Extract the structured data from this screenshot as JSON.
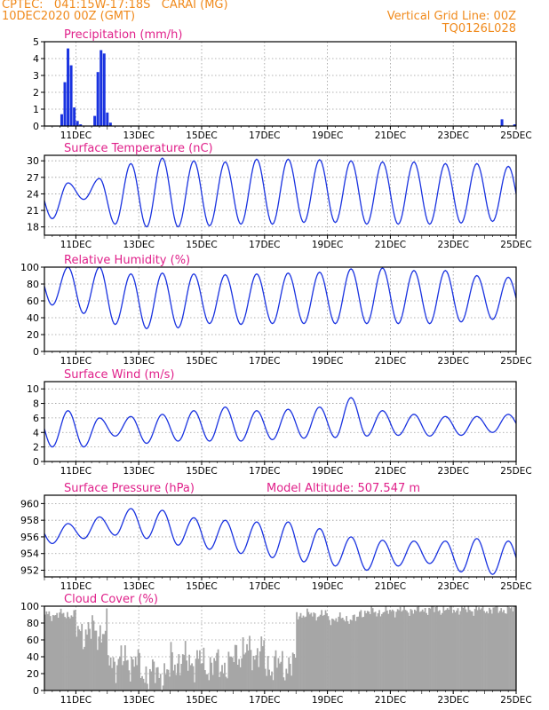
{
  "header": {
    "line1": "CPTEC:   041:15W-17:18S   CARAI (MG)",
    "line2": "10DEC2020 00Z (GMT)",
    "grid_note": "Vertical Grid Line: 00Z",
    "code": "TQ0126L028"
  },
  "colors": {
    "header": "#f08a1c",
    "title": "#e0208a",
    "series": "#1a33e0",
    "cloud": "#a6a6a6",
    "grid": "#9a9a9a"
  },
  "date_ticks": [
    "11DEC",
    "13DEC",
    "15DEC",
    "17DEC",
    "19DEC",
    "21DEC",
    "23DEC",
    "25DEC"
  ],
  "chart_data": [
    {
      "type": "bar",
      "title": "Precipitation (mm/h)",
      "ylim": [
        0,
        5
      ],
      "yticks": [
        0,
        1,
        2,
        3,
        4,
        5
      ],
      "x_unit": "days since 10DEC2020 00Z",
      "x": [
        0.55,
        0.65,
        0.75,
        0.85,
        0.95,
        1.05,
        1.15,
        1.6,
        1.7,
        1.8,
        1.9,
        2.0,
        2.1,
        14.55,
        14.95
      ],
      "values": [
        0.7,
        2.6,
        4.6,
        3.6,
        1.1,
        0.3,
        0.1,
        0.6,
        3.2,
        4.5,
        4.3,
        0.8,
        0.2,
        0.4,
        0.1
      ]
    },
    {
      "type": "line",
      "title": "Surface Temperature (nC)",
      "ylim": [
        16.5,
        31
      ],
      "yticks": [
        18,
        21,
        24,
        27,
        30
      ],
      "daily_min": [
        19.5,
        23.0,
        18.5,
        18.0,
        18.0,
        18.2,
        18.5,
        18.5,
        18.8,
        18.8,
        18.5,
        18.5,
        18.5,
        18.7,
        19.0
      ],
      "daily_max": [
        26.0,
        26.8,
        29.5,
        30.5,
        30.0,
        29.8,
        30.3,
        30.3,
        30.2,
        30.0,
        29.8,
        29.8,
        29.5,
        29.5,
        29.0
      ]
    },
    {
      "type": "line",
      "title": "Relative Humidity (%)",
      "ylim": [
        0,
        100
      ],
      "yticks": [
        0,
        20,
        40,
        60,
        80,
        100
      ],
      "daily_min": [
        55,
        45,
        32,
        27,
        28,
        33,
        32,
        33,
        33,
        33,
        33,
        33,
        33,
        35,
        38
      ],
      "daily_max": [
        100,
        100,
        92,
        93,
        92,
        91,
        92,
        93,
        94,
        98,
        99,
        96,
        96,
        90,
        88
      ]
    },
    {
      "type": "line",
      "title": "Surface Wind (m/s)",
      "ylim": [
        0,
        11
      ],
      "yticks": [
        0,
        2,
        4,
        6,
        8,
        10
      ],
      "daily_min": [
        2.0,
        2.0,
        3.5,
        2.5,
        2.8,
        2.8,
        2.8,
        3.0,
        3.2,
        3.3,
        3.5,
        3.6,
        3.5,
        3.6,
        4.0
      ],
      "daily_max": [
        7.0,
        6.0,
        6.2,
        6.5,
        7.0,
        7.5,
        7.0,
        7.2,
        7.5,
        8.8,
        7.0,
        6.5,
        6.2,
        6.2,
        6.5
      ]
    },
    {
      "type": "line",
      "title": "Surface Pressure (hPa)",
      "annotation": "Model Altitude: 507.547 m",
      "ylim": [
        951.2,
        961
      ],
      "yticks": [
        952,
        954,
        956,
        958,
        960
      ],
      "daily_min": [
        955.2,
        955.8,
        956.2,
        955.8,
        955.0,
        954.5,
        954.0,
        953.5,
        953.0,
        952.5,
        952.0,
        952.5,
        952.8,
        951.8,
        951.5
      ],
      "daily_max": [
        957.6,
        958.4,
        959.4,
        959.2,
        958.3,
        958.0,
        957.8,
        957.8,
        957.0,
        956.0,
        955.6,
        955.5,
        955.5,
        955.8,
        955.5
      ]
    },
    {
      "type": "area",
      "title": "Cloud Cover (%)",
      "ylim": [
        0,
        100
      ],
      "yticks": [
        0,
        20,
        40,
        60,
        80,
        100
      ],
      "daily_mean": [
        90,
        70,
        35,
        20,
        35,
        30,
        45,
        30,
        90,
        85,
        93,
        95,
        96,
        96,
        96
      ]
    }
  ]
}
